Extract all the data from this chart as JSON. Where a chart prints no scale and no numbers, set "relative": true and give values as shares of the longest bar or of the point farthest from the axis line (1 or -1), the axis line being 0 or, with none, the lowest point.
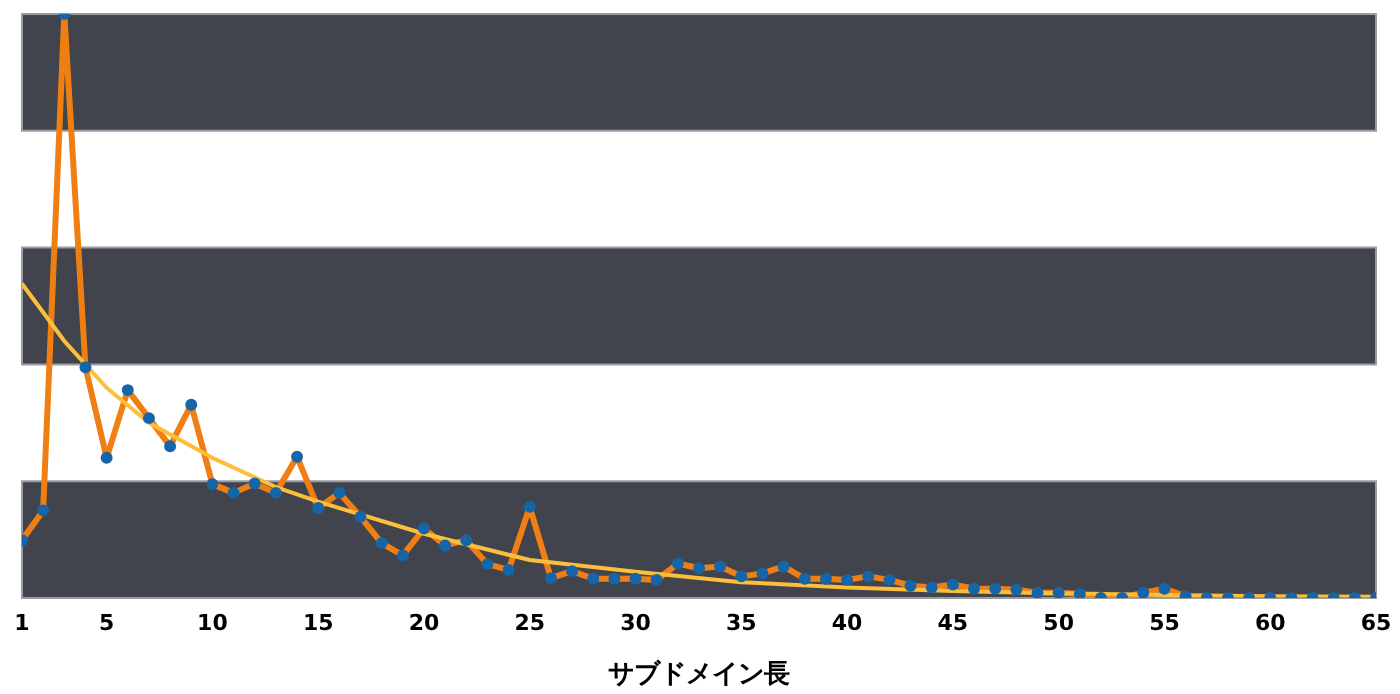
{
  "chart_data": {
    "type": "line",
    "xlabel": "サブドメイン長",
    "relative": true,
    "xlim": [
      1,
      65
    ],
    "xticks": [
      1,
      5,
      10,
      15,
      20,
      25,
      30,
      35,
      40,
      45,
      50,
      55,
      60,
      65
    ],
    "grid": false,
    "legend": false,
    "x": [
      1,
      2,
      3,
      4,
      5,
      6,
      7,
      8,
      9,
      10,
      11,
      12,
      13,
      14,
      15,
      16,
      17,
      18,
      19,
      20,
      21,
      22,
      23,
      24,
      25,
      26,
      27,
      28,
      29,
      30,
      31,
      32,
      33,
      34,
      35,
      36,
      37,
      38,
      39,
      40,
      41,
      42,
      43,
      44,
      45,
      46,
      47,
      48,
      49,
      50,
      51,
      52,
      53,
      54,
      55,
      56,
      57,
      58,
      59,
      60,
      61,
      62,
      63,
      64,
      65
    ],
    "bands": [
      {
        "axis": "y",
        "from": 0,
        "to": 0.2,
        "color": "#41444d"
      },
      {
        "axis": "y",
        "from": 0.4,
        "to": 0.6,
        "color": "#41444d"
      },
      {
        "axis": "y",
        "from": 0.8,
        "to": 1,
        "color": "#41444d"
      }
    ],
    "series": [
      {
        "color": "#f07f13",
        "marker": "none",
        "values": [
          0.099,
          0.15,
          1,
          0.395,
          0.24,
          0.356,
          0.308,
          0.26,
          0.331,
          0.195,
          0.18,
          0.196,
          0.18,
          0.242,
          0.154,
          0.18,
          0.139,
          0.094,
          0.073,
          0.119,
          0.09,
          0.099,
          0.058,
          0.048,
          0.156,
          0.034,
          0.046,
          0.033,
          0.033,
          0.033,
          0.031,
          0.059,
          0.051,
          0.054,
          0.037,
          0.042,
          0.054,
          0.033,
          0.033,
          0.031,
          0.037,
          0.031,
          0.021,
          0.018,
          0.023,
          0.016,
          0.016,
          0.014,
          0.009,
          0.009,
          0.007,
          0,
          0,
          0.009,
          0.016,
          0.003,
          0,
          0,
          0,
          0,
          0,
          0,
          0,
          0,
          0
        ]
      },
      {
        "type": "scatter",
        "color": "#1565a8",
        "marker": "circle",
        "values": [
          0.099,
          0.15,
          1,
          0.395,
          0.24,
          0.356,
          0.308,
          0.26,
          0.331,
          0.195,
          0.18,
          0.196,
          0.18,
          0.242,
          0.154,
          0.18,
          0.139,
          0.094,
          0.073,
          0.119,
          0.09,
          0.099,
          0.058,
          0.048,
          0.156,
          0.034,
          0.046,
          0.033,
          0.033,
          0.033,
          0.031,
          0.059,
          0.051,
          0.054,
          0.037,
          0.042,
          0.054,
          0.033,
          0.033,
          0.031,
          0.037,
          0.031,
          0.021,
          0.018,
          0.023,
          0.016,
          0.016,
          0.014,
          0.009,
          0.009,
          0.007,
          0,
          0,
          0.009,
          0.016,
          0.003,
          0,
          0,
          0,
          0,
          0,
          0,
          0,
          0,
          0
        ]
      },
      {
        "type": "line",
        "color": "#fbbf3b",
        "marker": "none",
        "x": [
          1,
          3,
          5,
          7,
          10,
          13,
          15,
          20,
          25,
          30,
          35,
          40,
          45,
          50,
          55,
          60,
          65
        ],
        "values": [
          0.538,
          0.44,
          0.36,
          0.3,
          0.24,
          0.19,
          0.165,
          0.11,
          0.065,
          0.045,
          0.027,
          0.018,
          0.012,
          0.008,
          0.005,
          0.003,
          0.002
        ]
      }
    ]
  }
}
